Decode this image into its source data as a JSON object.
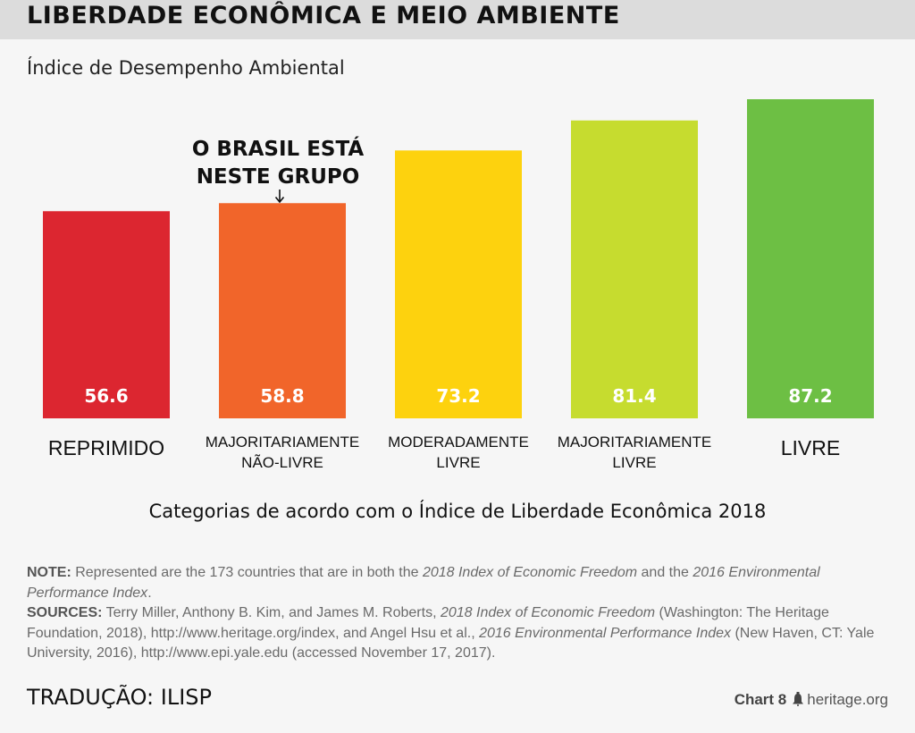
{
  "header": {
    "title": "LIBERDADE ECONÔMICA E MEIO AMBIENTE"
  },
  "annotation": {
    "line1": "O BRASIL ESTÁ",
    "line2": "NESTE GRUPO"
  },
  "chart_data": {
    "type": "bar",
    "title": "LIBERDADE ECONÔMICA E MEIO AMBIENTE",
    "ylabel": "Índice de Desempenho Ambiental",
    "xlabel": "Categorias de acordo com o Índice de Liberdade Econômica 2018",
    "categories": [
      [
        "REPRIMIDO"
      ],
      [
        "MAJORITARIAMENTE",
        "NÃO-LIVRE"
      ],
      [
        "MODERADAMENTE",
        "LIVRE"
      ],
      [
        "MAJORITARIAMENTE",
        "LIVRE"
      ],
      [
        "LIVRE"
      ]
    ],
    "values": [
      56.6,
      58.8,
      73.2,
      81.4,
      87.2
    ],
    "value_labels": [
      "56.6",
      "58.8",
      "73.2",
      "81.4",
      "87.2"
    ],
    "colors": [
      "#dc2630",
      "#f1652a",
      "#fdd20e",
      "#c6dc2f",
      "#6dbf44"
    ],
    "highlighted_category_index": 1,
    "grid": false
  },
  "footer": {
    "note_label": "NOTE:",
    "note_text_1": " Represented are the 173 countries that are in both the ",
    "note_italic_1": "2018 Index of Economic Freedom",
    "note_text_2": " and the ",
    "note_italic_2": "2016 Environmental Performance Index",
    "note_text_3": ".",
    "sources_label": "SOURCES:",
    "sources_text_1": " Terry Miller, Anthony B. Kim, and James M. Roberts, ",
    "sources_italic_1": "2018 Index of Economic Freedom",
    "sources_text_2": " (Washington: The Heritage Foundation, 2018), http://www.heritage.org/index, and Angel Hsu et al., ",
    "sources_italic_2": "2016 Environmental Performance Index",
    "sources_text_3": " (New Haven, CT: Yale University, 2016), http://www.epi.yale.edu (accessed November 17, 2017).",
    "translation": "TRADUÇÃO: ILISP",
    "chart_number": "Chart 8",
    "site": "heritage.org"
  }
}
